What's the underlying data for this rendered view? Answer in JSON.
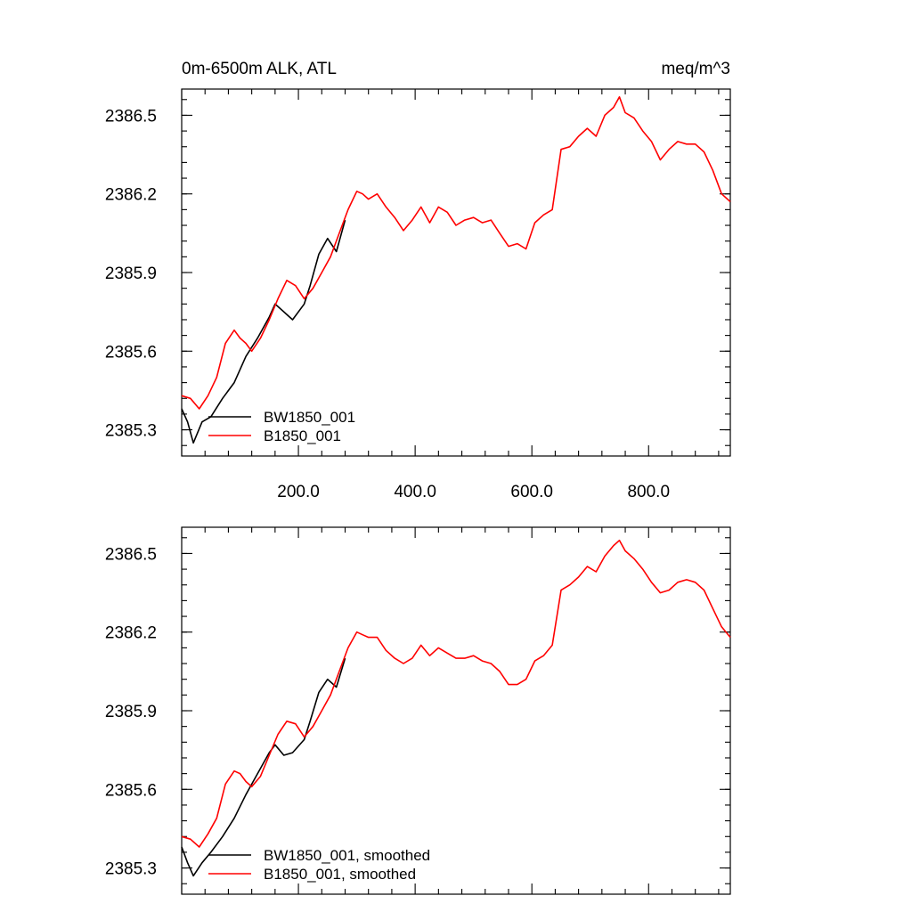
{
  "chart_data": [
    {
      "type": "line",
      "title": "0m-6500m ALK, ATL",
      "units": "meq/m^3",
      "xlim": [
        0,
        940
      ],
      "ylim": [
        2385.2,
        2386.6
      ],
      "x_ticks": [
        "200.0",
        "400.0",
        "600.0",
        "800.0"
      ],
      "y_ticks": [
        "2385.3",
        "2385.6",
        "2385.9",
        "2386.2",
        "2386.5"
      ],
      "legend_position": "bottom-left",
      "series": [
        {
          "name": "BW1850_001",
          "color": "#000000",
          "x": [
            0,
            10,
            20,
            35,
            50,
            70,
            90,
            110,
            130,
            150,
            160,
            175,
            190,
            210,
            220,
            235,
            250,
            265,
            280
          ],
          "y": [
            2385.38,
            2385.33,
            2385.25,
            2385.33,
            2385.35,
            2385.42,
            2385.48,
            2385.58,
            2385.65,
            2385.73,
            2385.78,
            2385.75,
            2385.72,
            2385.78,
            2385.85,
            2385.97,
            2386.03,
            2385.98,
            2386.1
          ]
        },
        {
          "name": "B1850_001",
          "color": "#ff0000",
          "x": [
            0,
            15,
            30,
            45,
            60,
            75,
            90,
            100,
            110,
            120,
            135,
            150,
            165,
            180,
            195,
            210,
            225,
            240,
            255,
            270,
            285,
            300,
            310,
            320,
            335,
            350,
            365,
            380,
            395,
            410,
            425,
            440,
            455,
            470,
            485,
            500,
            515,
            530,
            545,
            560,
            575,
            590,
            605,
            620,
            635,
            650,
            665,
            680,
            695,
            710,
            725,
            740,
            750,
            760,
            775,
            790,
            805,
            820,
            835,
            850,
            865,
            880,
            895,
            910,
            925,
            940
          ],
          "y": [
            2385.43,
            2385.42,
            2385.38,
            2385.43,
            2385.5,
            2385.63,
            2385.68,
            2385.65,
            2385.63,
            2385.6,
            2385.65,
            2385.72,
            2385.8,
            2385.87,
            2385.85,
            2385.8,
            2385.84,
            2385.9,
            2385.96,
            2386.05,
            2386.14,
            2386.21,
            2386.2,
            2386.18,
            2386.2,
            2386.15,
            2386.11,
            2386.06,
            2386.1,
            2386.15,
            2386.09,
            2386.15,
            2386.13,
            2386.08,
            2386.1,
            2386.11,
            2386.09,
            2386.1,
            2386.05,
            2386.0,
            2386.01,
            2385.99,
            2386.09,
            2386.12,
            2386.14,
            2386.37,
            2386.38,
            2386.42,
            2386.45,
            2386.42,
            2386.5,
            2386.53,
            2386.57,
            2386.51,
            2386.49,
            2386.44,
            2386.4,
            2386.33,
            2386.37,
            2386.4,
            2386.39,
            2386.39,
            2386.36,
            2386.29,
            2386.2,
            2386.17
          ]
        }
      ]
    },
    {
      "type": "line",
      "title": "",
      "xlim": [
        0,
        940
      ],
      "ylim": [
        2385.2,
        2386.6
      ],
      "y_ticks": [
        "2385.3",
        "2385.6",
        "2385.9",
        "2386.2",
        "2386.5"
      ],
      "legend_position": "bottom-left",
      "series": [
        {
          "name": "BW1850_001, smoothed",
          "color": "#000000",
          "x": [
            0,
            10,
            20,
            35,
            50,
            70,
            90,
            110,
            130,
            150,
            160,
            175,
            190,
            210,
            220,
            235,
            250,
            265,
            280
          ],
          "y": [
            2385.38,
            2385.32,
            2385.27,
            2385.32,
            2385.36,
            2385.42,
            2385.49,
            2385.58,
            2385.66,
            2385.74,
            2385.77,
            2385.73,
            2385.74,
            2385.79,
            2385.86,
            2385.97,
            2386.02,
            2385.99,
            2386.1
          ]
        },
        {
          "name": "B1850_001, smoothed",
          "color": "#ff0000",
          "x": [
            0,
            15,
            30,
            45,
            60,
            75,
            90,
            100,
            110,
            120,
            135,
            150,
            165,
            180,
            195,
            210,
            225,
            240,
            255,
            270,
            285,
            300,
            310,
            320,
            335,
            350,
            365,
            380,
            395,
            410,
            425,
            440,
            455,
            470,
            485,
            500,
            515,
            530,
            545,
            560,
            575,
            590,
            605,
            620,
            635,
            650,
            665,
            680,
            695,
            710,
            725,
            740,
            750,
            760,
            775,
            790,
            805,
            820,
            835,
            850,
            865,
            880,
            895,
            910,
            925,
            940
          ],
          "y": [
            2385.42,
            2385.41,
            2385.38,
            2385.43,
            2385.49,
            2385.62,
            2385.67,
            2385.66,
            2385.63,
            2385.61,
            2385.65,
            2385.73,
            2385.81,
            2385.86,
            2385.85,
            2385.8,
            2385.84,
            2385.9,
            2385.96,
            2386.05,
            2386.14,
            2386.2,
            2386.19,
            2386.18,
            2386.18,
            2386.13,
            2386.1,
            2386.08,
            2386.1,
            2386.15,
            2386.11,
            2386.14,
            2386.12,
            2386.1,
            2386.1,
            2386.11,
            2386.09,
            2386.08,
            2386.05,
            2386.0,
            2386.0,
            2386.02,
            2386.09,
            2386.11,
            2386.15,
            2386.36,
            2386.38,
            2386.41,
            2386.45,
            2386.43,
            2386.49,
            2386.53,
            2386.55,
            2386.51,
            2386.48,
            2386.44,
            2386.39,
            2386.35,
            2386.36,
            2386.39,
            2386.4,
            2386.39,
            2386.36,
            2386.29,
            2386.22,
            2386.18
          ]
        }
      ]
    }
  ]
}
